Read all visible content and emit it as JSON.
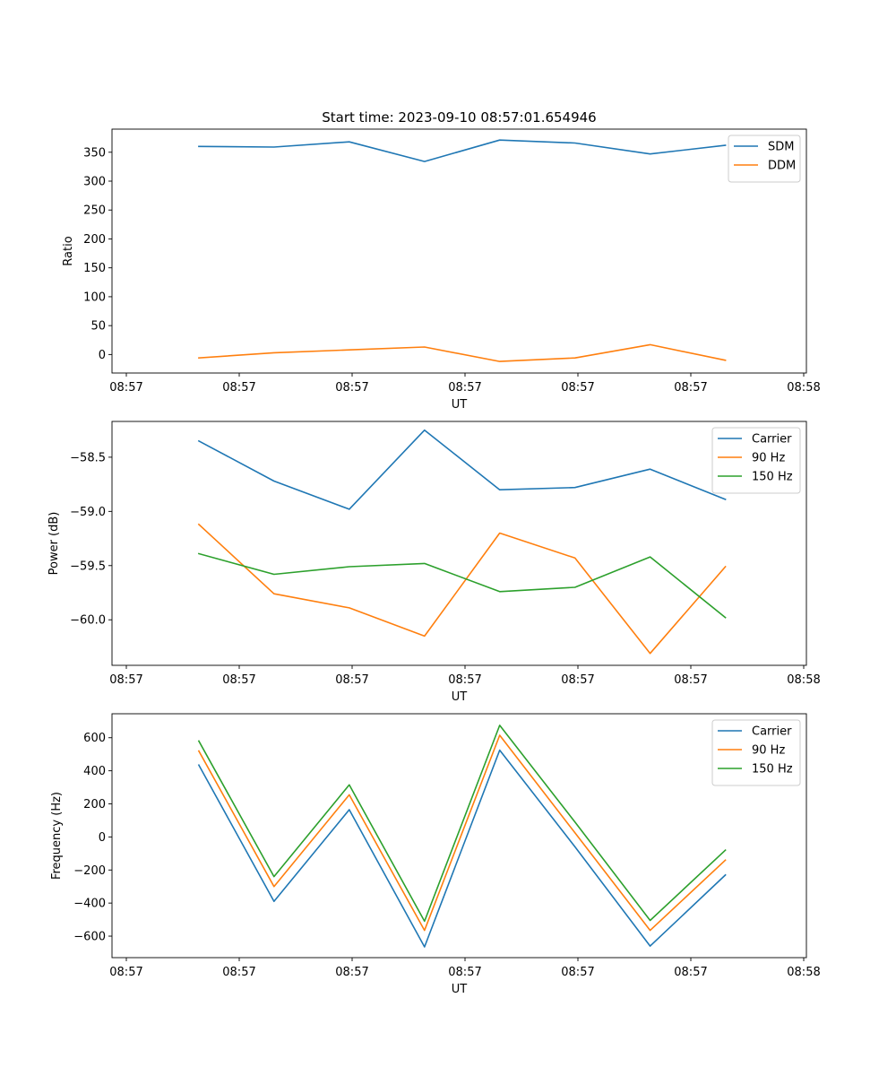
{
  "title": "Start time: 2023-09-10 08:57:01.654946",
  "colors": {
    "blue": "#1f77b4",
    "orange": "#ff7f0e",
    "green": "#2ca02c"
  },
  "chart_data": [
    {
      "type": "line",
      "xlabel": "UT",
      "ylabel": "Ratio",
      "xticks": [
        "08:57",
        "08:57",
        "08:57",
        "08:57",
        "08:57",
        "08:57",
        "08:58"
      ],
      "xlim": [
        -1.5,
        10.5
      ],
      "x": [
        0,
        1.3,
        2.6,
        3.9,
        5.2,
        6.5,
        7.8,
        9.1
      ],
      "ylim": [
        -32,
        390
      ],
      "yticks": [
        0,
        50,
        100,
        150,
        200,
        250,
        300,
        350
      ],
      "ytick_labels": [
        "0",
        "50",
        "100",
        "150",
        "200",
        "250",
        "300",
        "350"
      ],
      "legend_position": "upper-right",
      "series": [
        {
          "name": "SDM",
          "color": "#1f77b4",
          "values": [
            360,
            359,
            368,
            334,
            371,
            366,
            347,
            362
          ]
        },
        {
          "name": "DDM",
          "color": "#ff7f0e",
          "values": [
            -6,
            3,
            8,
            13,
            -12,
            -6,
            17,
            -10
          ]
        }
      ]
    },
    {
      "type": "line",
      "xlabel": "UT",
      "ylabel": "Power (dB)",
      "xticks": [
        "08:57",
        "08:57",
        "08:57",
        "08:57",
        "08:57",
        "08:57",
        "08:58"
      ],
      "xlim": [
        -1.5,
        10.5
      ],
      "x": [
        0,
        1.3,
        2.6,
        3.9,
        5.2,
        6.5,
        7.8,
        9.1
      ],
      "ylim": [
        -60.42,
        -58.17
      ],
      "yticks": [
        -60.0,
        -59.5,
        -59.0,
        -58.5
      ],
      "ytick_labels": [
        "−60.0",
        "−59.5",
        "−59.0",
        "−58.5"
      ],
      "legend_position": "upper-right",
      "series": [
        {
          "name": "Carrier",
          "color": "#1f77b4",
          "values": [
            -58.35,
            -58.72,
            -58.98,
            -58.25,
            -58.8,
            -58.78,
            -58.61,
            -58.89
          ]
        },
        {
          "name": "90 Hz",
          "color": "#ff7f0e",
          "values": [
            -59.12,
            -59.76,
            -59.89,
            -60.15,
            -59.2,
            -59.43,
            -60.31,
            -59.51
          ]
        },
        {
          "name": "150 Hz",
          "color": "#2ca02c",
          "values": [
            -59.39,
            -59.58,
            -59.51,
            -59.48,
            -59.74,
            -59.7,
            -59.42,
            -59.98
          ]
        }
      ]
    },
    {
      "type": "line",
      "xlabel": "UT",
      "ylabel": "Frequency (Hz)",
      "xticks": [
        "08:57",
        "08:57",
        "08:57",
        "08:57",
        "08:57",
        "08:57",
        "08:58"
      ],
      "xlim": [
        -1.5,
        10.5
      ],
      "x": [
        0,
        1.3,
        2.6,
        3.9,
        5.2,
        6.5,
        7.8,
        9.1
      ],
      "ylim": [
        -730,
        745
      ],
      "yticks": [
        -600,
        -400,
        -200,
        0,
        200,
        400,
        600
      ],
      "ytick_labels": [
        "−600",
        "−400",
        "−200",
        "0",
        "200",
        "400",
        "600"
      ],
      "legend_position": "upper-right",
      "series": [
        {
          "name": "Carrier",
          "color": "#1f77b4",
          "values": [
            435,
            -390,
            165,
            -665,
            525,
            -60,
            -660,
            -230
          ]
        },
        {
          "name": "90 Hz",
          "color": "#ff7f0e",
          "values": [
            520,
            -300,
            255,
            -565,
            615,
            25,
            -565,
            -140
          ]
        },
        {
          "name": "150 Hz",
          "color": "#2ca02c",
          "values": [
            580,
            -240,
            315,
            -510,
            675,
            90,
            -505,
            -80
          ]
        }
      ]
    }
  ]
}
